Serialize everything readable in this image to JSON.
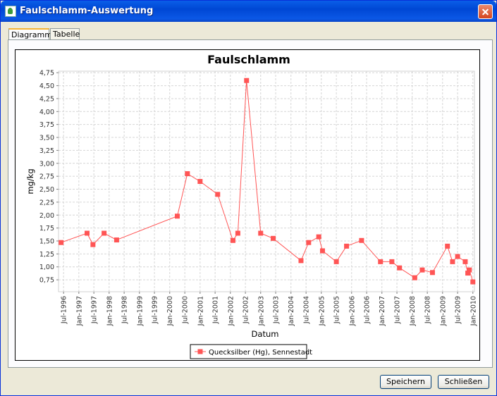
{
  "window": {
    "title": "Faulschlamm-Auswertung"
  },
  "tabs": [
    {
      "label": "Diagramm",
      "active": true
    },
    {
      "label": "Tabelle",
      "active": false
    }
  ],
  "buttons": {
    "save": "Speichern",
    "close": "Schließen"
  },
  "chart_data": {
    "type": "line",
    "title": "Faulschlamm",
    "xlabel": "Datum",
    "ylabel": "mg/kg",
    "ylim": [
      0.52,
      4.78
    ],
    "xlim": [
      "1996-05-01",
      "2010-01-20"
    ],
    "y_ticks": [
      "4,75",
      "4,50",
      "4,25",
      "4,00",
      "3,75",
      "3,50",
      "3,25",
      "3,00",
      "2,75",
      "2,50",
      "2,25",
      "2,00",
      "1,75",
      "1,50",
      "1,25",
      "1,00",
      "0,75"
    ],
    "x_ticks": [
      "Jul-1996",
      "Jan-1997",
      "Jul-1997",
      "Jan-1998",
      "Jul-1998",
      "Jan-1999",
      "Jul-1999",
      "Jan-2000",
      "Jul-2000",
      "Jan-2001",
      "Jul-2001",
      "Jan-2002",
      "Jul-2002",
      "Jan-2003",
      "Jul-2003",
      "Jan-2004",
      "Jul-2004",
      "Jan-2005",
      "Jul-2005",
      "Jan-2006",
      "Jul-2006",
      "Jan-2007",
      "Jul-2007",
      "Jan-2008",
      "Jul-2008",
      "Jan-2009",
      "Jul-2009",
      "Jan-2010"
    ],
    "grid": true,
    "legend_position": "bottom",
    "series": [
      {
        "name": "Quecksilber (Hg), Sennestadt",
        "color": "#ff5555",
        "x": [
          "1996-06-01",
          "1997-04-10",
          "1997-06-20",
          "1997-11-01",
          "1998-04-01",
          "2000-04-01",
          "2000-08-01",
          "2001-01-01",
          "2001-08-01",
          "2002-02-01",
          "2002-04-01",
          "2002-07-15",
          "2003-01-01",
          "2003-06-01",
          "2004-05-01",
          "2004-08-01",
          "2004-12-01",
          "2005-01-15",
          "2005-07-01",
          "2005-11-01",
          "2006-05-01",
          "2006-12-15",
          "2007-05-01",
          "2007-08-01",
          "2008-02-01",
          "2008-05-01",
          "2008-09-01",
          "2009-03-01",
          "2009-05-01",
          "2009-07-01",
          "2009-10-01",
          "2009-11-01",
          "2009-11-20",
          "2010-01-01"
        ],
        "values": [
          1.47,
          1.65,
          1.43,
          1.65,
          1.52,
          1.98,
          2.8,
          2.65,
          2.4,
          1.51,
          1.65,
          4.6,
          1.65,
          1.55,
          1.12,
          1.47,
          1.58,
          1.31,
          1.1,
          1.4,
          1.51,
          1.1,
          1.1,
          0.98,
          0.79,
          0.94,
          0.89,
          1.4,
          1.1,
          1.2,
          1.1,
          0.88,
          0.94,
          0.71
        ]
      }
    ]
  }
}
